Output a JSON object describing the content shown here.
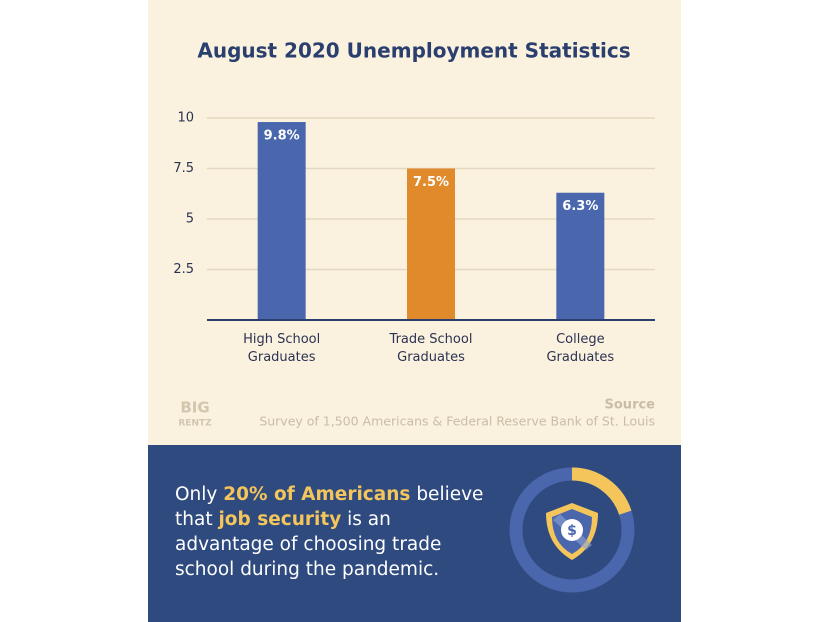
{
  "chart_data": {
    "type": "bar",
    "title": "August 2020 Unemployment Statistics",
    "categories": [
      "High School Graduates",
      "Trade School Graduates",
      "College Graduates"
    ],
    "values": [
      9.8,
      7.5,
      6.3
    ],
    "value_labels": [
      "9.8%",
      "7.5%",
      "6.3%"
    ],
    "colors": [
      "#4a67ad",
      "#e08a2c",
      "#4a67ad"
    ],
    "ylim": [
      0,
      10
    ],
    "yticks": [
      2.5,
      5,
      7.5,
      10
    ],
    "grid": true
  },
  "source": {
    "heading": "Source",
    "text": "Survey of 1,500 Americans & Federal Reserve Bank of St. Louis"
  },
  "logo": {
    "top": "BIG",
    "bottom": "RENTZ"
  },
  "callout": {
    "parts": [
      "Only ",
      "20% of Americans",
      " believe that ",
      "job security",
      " is an advantage of choosing trade school during the pandemic."
    ],
    "donut_value": 20
  }
}
